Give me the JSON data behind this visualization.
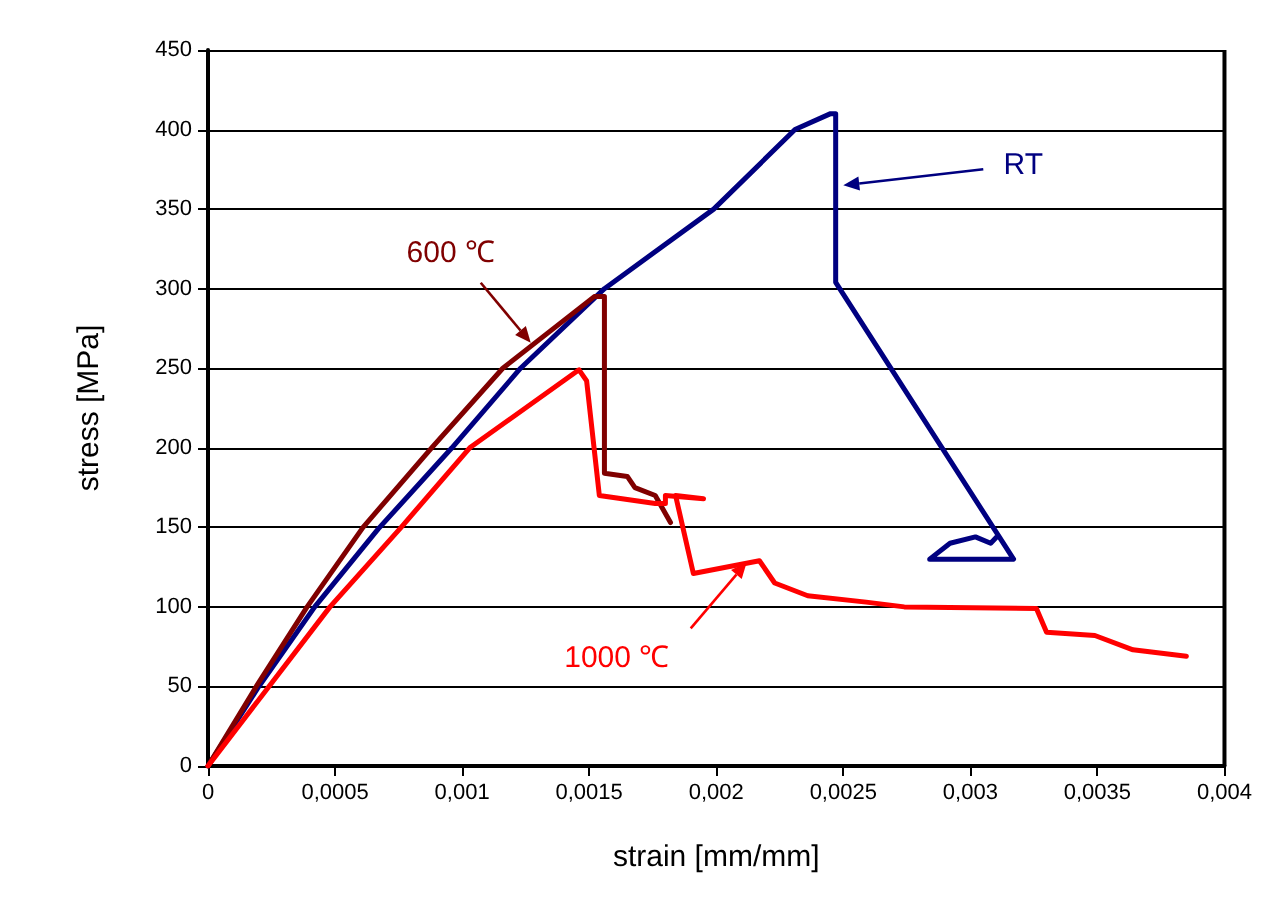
{
  "chart_data": {
    "type": "line",
    "xlabel": "strain [mm/mm]",
    "ylabel": "stress [MPa]",
    "xlim": [
      0,
      0.004
    ],
    "xticks": [
      0,
      {
        "value": 0.0005,
        "label": "0,0005"
      },
      {
        "value": 0.001,
        "label": "0,001"
      },
      {
        "value": 0.0015,
        "label": "0,0015"
      },
      {
        "value": 0.002,
        "label": "0,002"
      },
      {
        "value": 0.0025,
        "label": "0,0025"
      },
      {
        "value": 0.003,
        "label": "0,003"
      },
      {
        "value": 0.0035,
        "label": "0,0035"
      },
      {
        "value": 0.004,
        "label": "0,004"
      }
    ],
    "ylim": [
      0,
      450
    ],
    "yticks": [
      0,
      50,
      100,
      150,
      200,
      250,
      300,
      350,
      400,
      450
    ],
    "grid": "y",
    "marker": "none",
    "line_style": "solid",
    "series": [
      {
        "color": "#000080",
        "x": [
          0,
          0.0002,
          0.00042,
          0.00067,
          0.00096,
          0.00123,
          0.00156,
          0.00199,
          0.00231,
          0.00245,
          0.00247,
          0.00247,
          0.00317,
          0.00284,
          0.00292,
          0.00302,
          0.00308,
          0.00311,
          0.00317
        ],
        "values": [
          0,
          50,
          100,
          149,
          200,
          250,
          300,
          350,
          400,
          410,
          410,
          304,
          130,
          130,
          140,
          144,
          140,
          145,
          130
        ]
      },
      {
        "color": "#800000",
        "x": [
          0,
          0.00019,
          0.00039,
          0.00061,
          0.00088,
          0.00116,
          0.00152,
          0.00156,
          0.00156,
          0.00165,
          0.00168,
          0.00176,
          0.00182
        ],
        "values": [
          0,
          50,
          100,
          150,
          200,
          250,
          295,
          295,
          184,
          182,
          175,
          170,
          153
        ]
      },
      {
        "color": "#ff0000",
        "x": [
          0,
          0.00024,
          0.00048,
          0.00076,
          0.00103,
          0.00146,
          0.00149,
          0.00154,
          0.00176,
          0.0018,
          0.0018,
          0.00195,
          0.00184,
          0.00191,
          0.00217,
          0.00223,
          0.00236,
          0.00259,
          0.00274,
          0.00326,
          0.0033,
          0.00349,
          0.00364,
          0.00385
        ],
        "values": [
          0,
          50,
          100,
          150,
          200,
          249,
          242,
          170,
          165,
          165,
          170,
          168,
          170,
          121,
          129,
          115,
          107,
          103,
          100,
          99,
          84,
          82,
          73,
          69
        ]
      }
    ],
    "annotations": [
      {
        "text": "RT",
        "x": 0.0025,
        "y": 365
      },
      {
        "text": "600 ℃",
        "x": 0.00127,
        "y": 266
      },
      {
        "text": "1000 ℃",
        "x": 0.00212,
        "y": 128
      }
    ]
  }
}
